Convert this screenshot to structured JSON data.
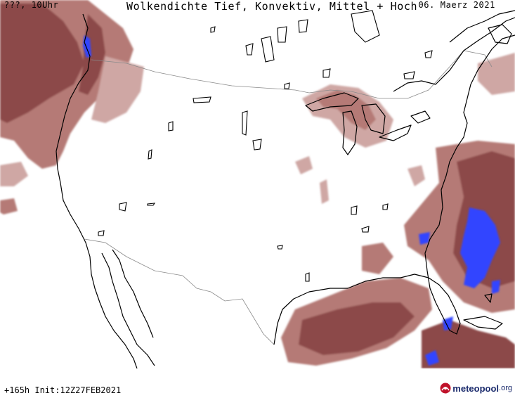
{
  "header": {
    "left": "???, 10Uhr",
    "center": "Wolkendichte  Tief, Konvektiv, Mittel + Hoch",
    "right": "06. Maerz 2021"
  },
  "footer": {
    "init": "+165h Init:12Z27FEB2021",
    "logo_name": "meteopool",
    "logo_tld": ".org",
    "logo_icon": "meteopool-logo-icon"
  },
  "colors": {
    "cloud_light": "#cfa7a4",
    "cloud_mid": "#b57a76",
    "cloud_dark": "#8c4a48",
    "cloud_peak": "#3344ff",
    "coast": "#000000",
    "border": "#8a8a8a"
  }
}
